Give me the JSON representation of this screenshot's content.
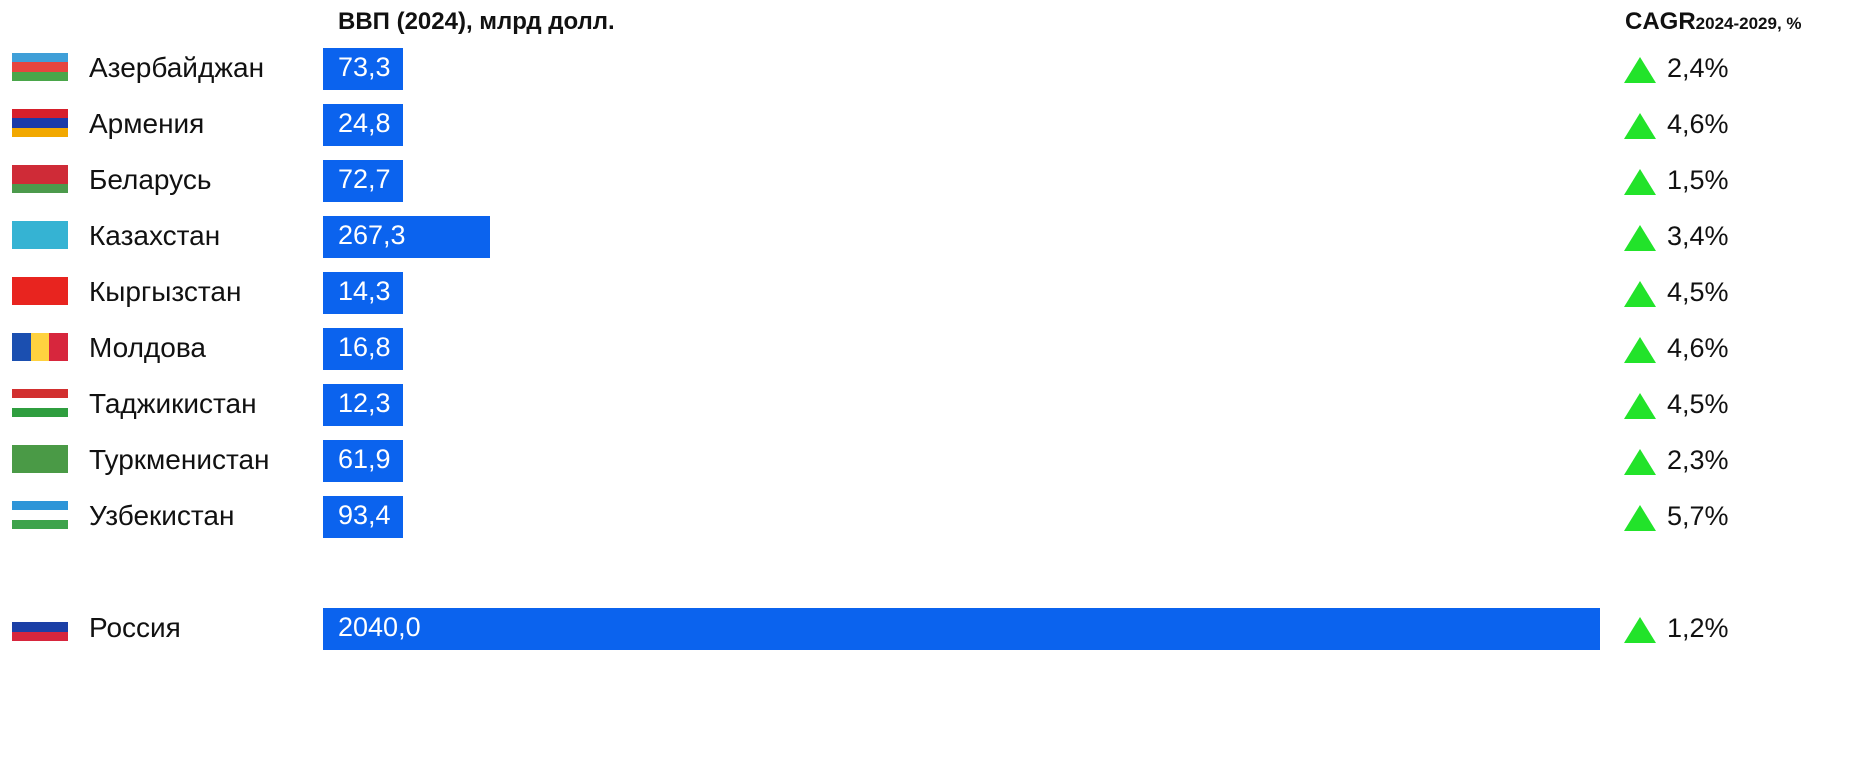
{
  "header": {
    "gdp_label": "ВВП (2024), млрд долл.",
    "cagr_main": "CAGR",
    "cagr_sub": "2024-2029, %"
  },
  "chart_data": {
    "type": "bar",
    "orientation": "horizontal",
    "title": "ВВП (2024), млрд долл.",
    "categories": [
      "Азербайджан",
      "Армения",
      "Беларусь",
      "Казахстан",
      "Кыргызстан",
      "Молдова",
      "Таджикистан",
      "Туркменистан",
      "Узбекистан",
      "Россия"
    ],
    "values": [
      73.3,
      24.8,
      72.7,
      267.3,
      14.3,
      16.8,
      12.3,
      61.9,
      93.4,
      2040.0
    ],
    "value_labels": [
      "73,3",
      "24,8",
      "72,7",
      "267,3",
      "14,3",
      "16,8",
      "12,3",
      "61,9",
      "93,4",
      "2040,0"
    ],
    "cagr_title": "CAGR 2024-2029, %",
    "cagr_labels": [
      "2,4%",
      "4,6%",
      "1,5%",
      "3,4%",
      "4,5%",
      "4,6%",
      "4,5%",
      "2,3%",
      "5,7%",
      "1,2%"
    ],
    "cagr_trend": "up",
    "bar_color": "#0b63ee",
    "trend_color": "#22e32a"
  },
  "rows": [
    {
      "country": "Азербайджан",
      "gdp": "73,3",
      "cagr": "2,4%",
      "flag_icon": "azerbaijan-flag-icon"
    },
    {
      "country": "Армения",
      "gdp": "24,8",
      "cagr": "4,6%",
      "flag_icon": "armenia-flag-icon"
    },
    {
      "country": "Беларусь",
      "gdp": "72,7",
      "cagr": "1,5%",
      "flag_icon": "belarus-flag-icon"
    },
    {
      "country": "Казахстан",
      "gdp": "267,3",
      "cagr": "3,4%",
      "flag_icon": "kazakhstan-flag-icon"
    },
    {
      "country": "Кыргызстан",
      "gdp": "14,3",
      "cagr": "4,5%",
      "flag_icon": "kyrgyzstan-flag-icon"
    },
    {
      "country": "Молдова",
      "gdp": "16,8",
      "cagr": "4,6%",
      "flag_icon": "moldova-flag-icon"
    },
    {
      "country": "Таджикистан",
      "gdp": "12,3",
      "cagr": "4,5%",
      "flag_icon": "tajikistan-flag-icon"
    },
    {
      "country": "Туркменистан",
      "gdp": "61,9",
      "cagr": "2,3%",
      "flag_icon": "turkmenistan-flag-icon"
    },
    {
      "country": "Узбекистан",
      "gdp": "93,4",
      "cagr": "5,7%",
      "flag_icon": "uzbekistan-flag-icon"
    },
    {
      "country": "Россия",
      "gdp": "2040,0",
      "cagr": "1,2%",
      "flag_icon": "russia-flag-icon"
    }
  ]
}
